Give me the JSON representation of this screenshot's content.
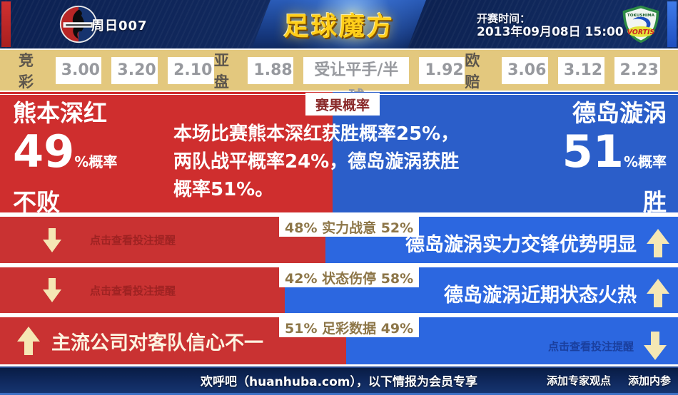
{
  "header": {
    "match_code": "周日007",
    "brand": "足球魔方",
    "kickoff_label": "开赛时间：",
    "kickoff_time": "2013年09月08日 15:00",
    "away_crest_top_text": "TOKUSHIMA",
    "away_crest_banner_text": "VORTIS"
  },
  "odds": {
    "jingcai": {
      "label": "竞彩",
      "values": [
        "3.00",
        "3.20",
        "2.10"
      ]
    },
    "yapan": {
      "label": "亚盘",
      "home": "1.88",
      "handicap": "受让平手/半球",
      "away": "1.92"
    },
    "oupei": {
      "label": "欧赔",
      "values": [
        "3.06",
        "3.12",
        "2.23"
      ]
    }
  },
  "result_panel": {
    "tab": "赛果概率",
    "home": {
      "name": "熊本深红",
      "percent": 49,
      "suffix": "%概率",
      "outcome": "不败"
    },
    "away": {
      "name": "德岛漩涡",
      "percent": 51,
      "suffix": "%概率",
      "outcome": "胜"
    },
    "summary": "本场比赛熊本深红获胜概率25%，两队战平概率24%，德岛漩涡获胜概率51%。"
  },
  "factor_rows": [
    {
      "home_pct": 48,
      "away_pct": 52,
      "label": "48% 实力战意 52%",
      "left_hint": "点击查看投注提醒",
      "right_headline": "德岛漩涡实力交锋优势明显"
    },
    {
      "home_pct": 42,
      "away_pct": 58,
      "label": "42% 状态伤停 58%",
      "left_hint": "点击查看投注提醒",
      "right_headline": "德岛漩涡近期状态火热"
    },
    {
      "home_pct": 51,
      "away_pct": 49,
      "label": "51% 足彩数据 49%",
      "left_headline": "主流公司对客队信心不一",
      "right_hint": "点击查看投注提醒"
    }
  ],
  "footer": {
    "promo": "欢呼吧（huanhuba.com），以下情报为会员专享",
    "links": [
      "添加专家观点",
      "添加内参"
    ]
  },
  "colors": {
    "home_red": "#c93232",
    "away_blue": "#2c67e0",
    "main_red": "#cf2e2e",
    "main_blue": "#2b5ec9",
    "odds_bg": "#e3c87e",
    "arrow_cream": "#f5e7b4",
    "brand_gold": "#ffce1a",
    "navy": "#0c2152"
  },
  "icons": {
    "down_arrow": "block-arrow-down",
    "up_arrow": "block-arrow-up",
    "home_crest": "roasso-kumamoto-crest",
    "away_crest": "tokushima-vortis-crest"
  }
}
